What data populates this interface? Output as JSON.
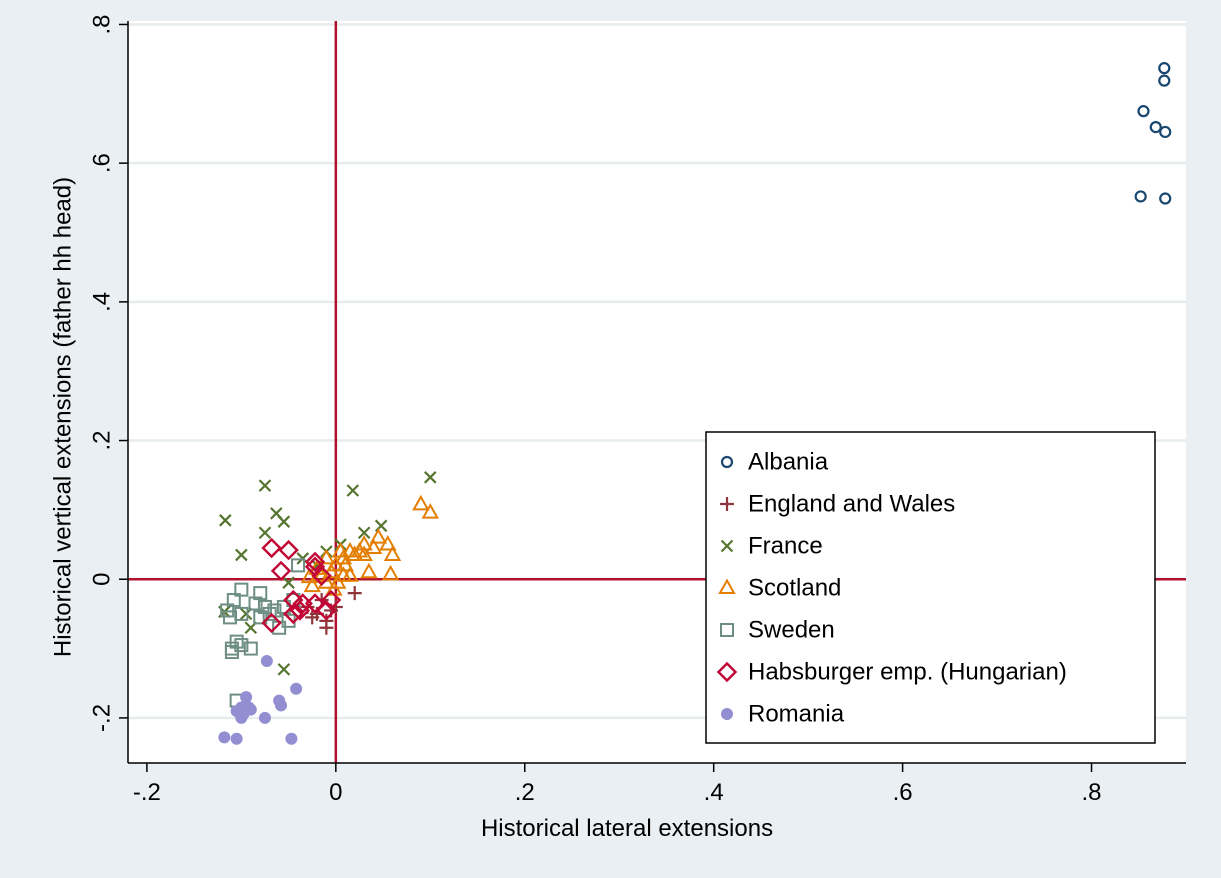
{
  "chart_data": {
    "type": "scatter",
    "title": "",
    "xlabel": "Historical lateral extensions",
    "ylabel": "Historical vertical extensions (father hh head)",
    "xlim": [
      -0.22,
      0.9
    ],
    "ylim": [
      -0.265,
      0.805
    ],
    "xticks": [
      {
        "value": -0.2,
        "label": "-.2"
      },
      {
        "value": 0,
        "label": "0"
      },
      {
        "value": 0.2,
        "label": ".2"
      },
      {
        "value": 0.4,
        "label": ".4"
      },
      {
        "value": 0.6,
        "label": ".6"
      },
      {
        "value": 0.8,
        "label": ".8"
      }
    ],
    "yticks": [
      {
        "value": -0.2,
        "label": "-.2"
      },
      {
        "value": 0,
        "label": "0"
      },
      {
        "value": 0.2,
        "label": ".2"
      },
      {
        "value": 0.4,
        "label": ".4"
      },
      {
        "value": 0.6,
        "label": ".6"
      },
      {
        "value": 0.8,
        "label": ".8"
      }
    ],
    "grid": {
      "horizontal": true,
      "vertical": false
    },
    "reference_lines": {
      "x": 0,
      "y": 0,
      "color": "#b0122e"
    },
    "legend_position": "bottom-right",
    "colors": {
      "outer_background": "#e9eff3",
      "plot_background": "#ffffff",
      "gridline": "#e7ecef"
    },
    "series": [
      {
        "name": "Albania",
        "marker": "circle-open",
        "color": "#1a476f",
        "points": [
          [
            0.877,
            0.737
          ],
          [
            0.877,
            0.719
          ],
          [
            0.855,
            0.675
          ],
          [
            0.868,
            0.652
          ],
          [
            0.878,
            0.645
          ],
          [
            0.852,
            0.552
          ],
          [
            0.878,
            0.549
          ]
        ]
      },
      {
        "name": "England and Wales",
        "marker": "plus",
        "color": "#90353b",
        "points": [
          [
            -0.03,
            -0.04
          ],
          [
            -0.02,
            -0.05
          ],
          [
            -0.01,
            -0.06
          ],
          [
            -0.01,
            -0.07
          ],
          [
            0.0,
            -0.04
          ],
          [
            -0.025,
            -0.055
          ],
          [
            0.02,
            -0.02
          ],
          [
            -0.015,
            -0.03
          ],
          [
            -0.005,
            -0.045
          ]
        ]
      },
      {
        "name": "France",
        "marker": "x",
        "color": "#55752f",
        "points": [
          [
            -0.117,
            0.085
          ],
          [
            -0.075,
            0.135
          ],
          [
            -0.063,
            0.095
          ],
          [
            -0.055,
            0.083
          ],
          [
            -0.075,
            0.067
          ],
          [
            -0.1,
            0.035
          ],
          [
            0.018,
            0.128
          ],
          [
            0.1,
            0.147
          ],
          [
            0.048,
            0.077
          ],
          [
            0.03,
            0.067
          ],
          [
            -0.05,
            -0.005
          ],
          [
            -0.095,
            -0.05
          ],
          [
            -0.118,
            -0.047
          ],
          [
            -0.09,
            -0.07
          ],
          [
            -0.055,
            -0.13
          ],
          [
            -0.035,
            0.03
          ],
          [
            0.005,
            0.05
          ],
          [
            -0.02,
            0.02
          ],
          [
            -0.01,
            0.04
          ]
        ]
      },
      {
        "name": "Scotland",
        "marker": "triangle-open",
        "color": "#e37e00",
        "points": [
          [
            0.09,
            0.108
          ],
          [
            0.1,
            0.096
          ],
          [
            0.055,
            0.05
          ],
          [
            0.06,
            0.035
          ],
          [
            0.058,
            0.007
          ],
          [
            0.035,
            0.01
          ],
          [
            0.045,
            0.06
          ],
          [
            0.04,
            0.045
          ],
          [
            0.025,
            0.04
          ],
          [
            0.015,
            0.04
          ],
          [
            0.03,
            0.05
          ],
          [
            0.008,
            0.03
          ],
          [
            -0.01,
            0.03
          ],
          [
            0.0,
            0.02
          ],
          [
            -0.005,
            0.01
          ],
          [
            0.002,
            -0.005
          ],
          [
            0.008,
            0.005
          ],
          [
            0.01,
            0.02
          ],
          [
            -0.015,
            0.005
          ],
          [
            -0.028,
            0.003
          ],
          [
            -0.02,
            0.015
          ],
          [
            -0.002,
            -0.015
          ],
          [
            0.015,
            0.005
          ],
          [
            0.02,
            0.035
          ],
          [
            0.005,
            0.04
          ],
          [
            0.03,
            0.035
          ],
          [
            -0.025,
            -0.01
          ],
          [
            -0.01,
            -0.005
          ]
        ]
      },
      {
        "name": "Sweden",
        "marker": "square-open",
        "color": "#6e8e84",
        "points": [
          [
            -0.108,
            -0.03
          ],
          [
            -0.1,
            -0.015
          ],
          [
            -0.08,
            -0.02
          ],
          [
            -0.115,
            -0.045
          ],
          [
            -0.112,
            -0.055
          ],
          [
            -0.1,
            -0.05
          ],
          [
            -0.085,
            -0.035
          ],
          [
            -0.075,
            -0.04
          ],
          [
            -0.065,
            -0.045
          ],
          [
            -0.055,
            -0.04
          ],
          [
            -0.04,
            0.02
          ],
          [
            -0.045,
            -0.03
          ],
          [
            -0.05,
            -0.06
          ],
          [
            -0.06,
            -0.07
          ],
          [
            -0.105,
            -0.09
          ],
          [
            -0.11,
            -0.1
          ],
          [
            -0.11,
            -0.105
          ],
          [
            -0.1,
            -0.095
          ],
          [
            -0.09,
            -0.1
          ],
          [
            -0.105,
            -0.175
          ],
          [
            -0.08,
            -0.055
          ],
          [
            -0.07,
            -0.05
          ]
        ]
      },
      {
        "name": "Habsburger emp. (Hungarian)",
        "marker": "diamond-open",
        "color": "#c10534",
        "points": [
          [
            -0.068,
            0.045
          ],
          [
            -0.05,
            0.042
          ],
          [
            -0.058,
            0.012
          ],
          [
            -0.022,
            0.025
          ],
          [
            -0.022,
            0.018
          ],
          [
            -0.015,
            0.005
          ],
          [
            -0.045,
            -0.03
          ],
          [
            -0.035,
            -0.035
          ],
          [
            -0.045,
            -0.05
          ],
          [
            -0.038,
            -0.045
          ],
          [
            -0.068,
            -0.063
          ],
          [
            -0.022,
            -0.035
          ],
          [
            -0.01,
            -0.045
          ],
          [
            -0.005,
            -0.03
          ]
        ]
      },
      {
        "name": "Romania",
        "marker": "circle-filled",
        "color": "#938dd2",
        "points": [
          [
            -0.073,
            -0.118
          ],
          [
            -0.095,
            -0.17
          ],
          [
            -0.06,
            -0.175
          ],
          [
            -0.042,
            -0.158
          ],
          [
            -0.058,
            -0.182
          ],
          [
            -0.1,
            -0.185
          ],
          [
            -0.092,
            -0.185
          ],
          [
            -0.105,
            -0.19
          ],
          [
            -0.1,
            -0.2
          ],
          [
            -0.075,
            -0.2
          ],
          [
            -0.098,
            -0.195
          ],
          [
            -0.118,
            -0.228
          ],
          [
            -0.105,
            -0.23
          ],
          [
            -0.047,
            -0.23
          ],
          [
            -0.09,
            -0.188
          ]
        ]
      }
    ]
  }
}
